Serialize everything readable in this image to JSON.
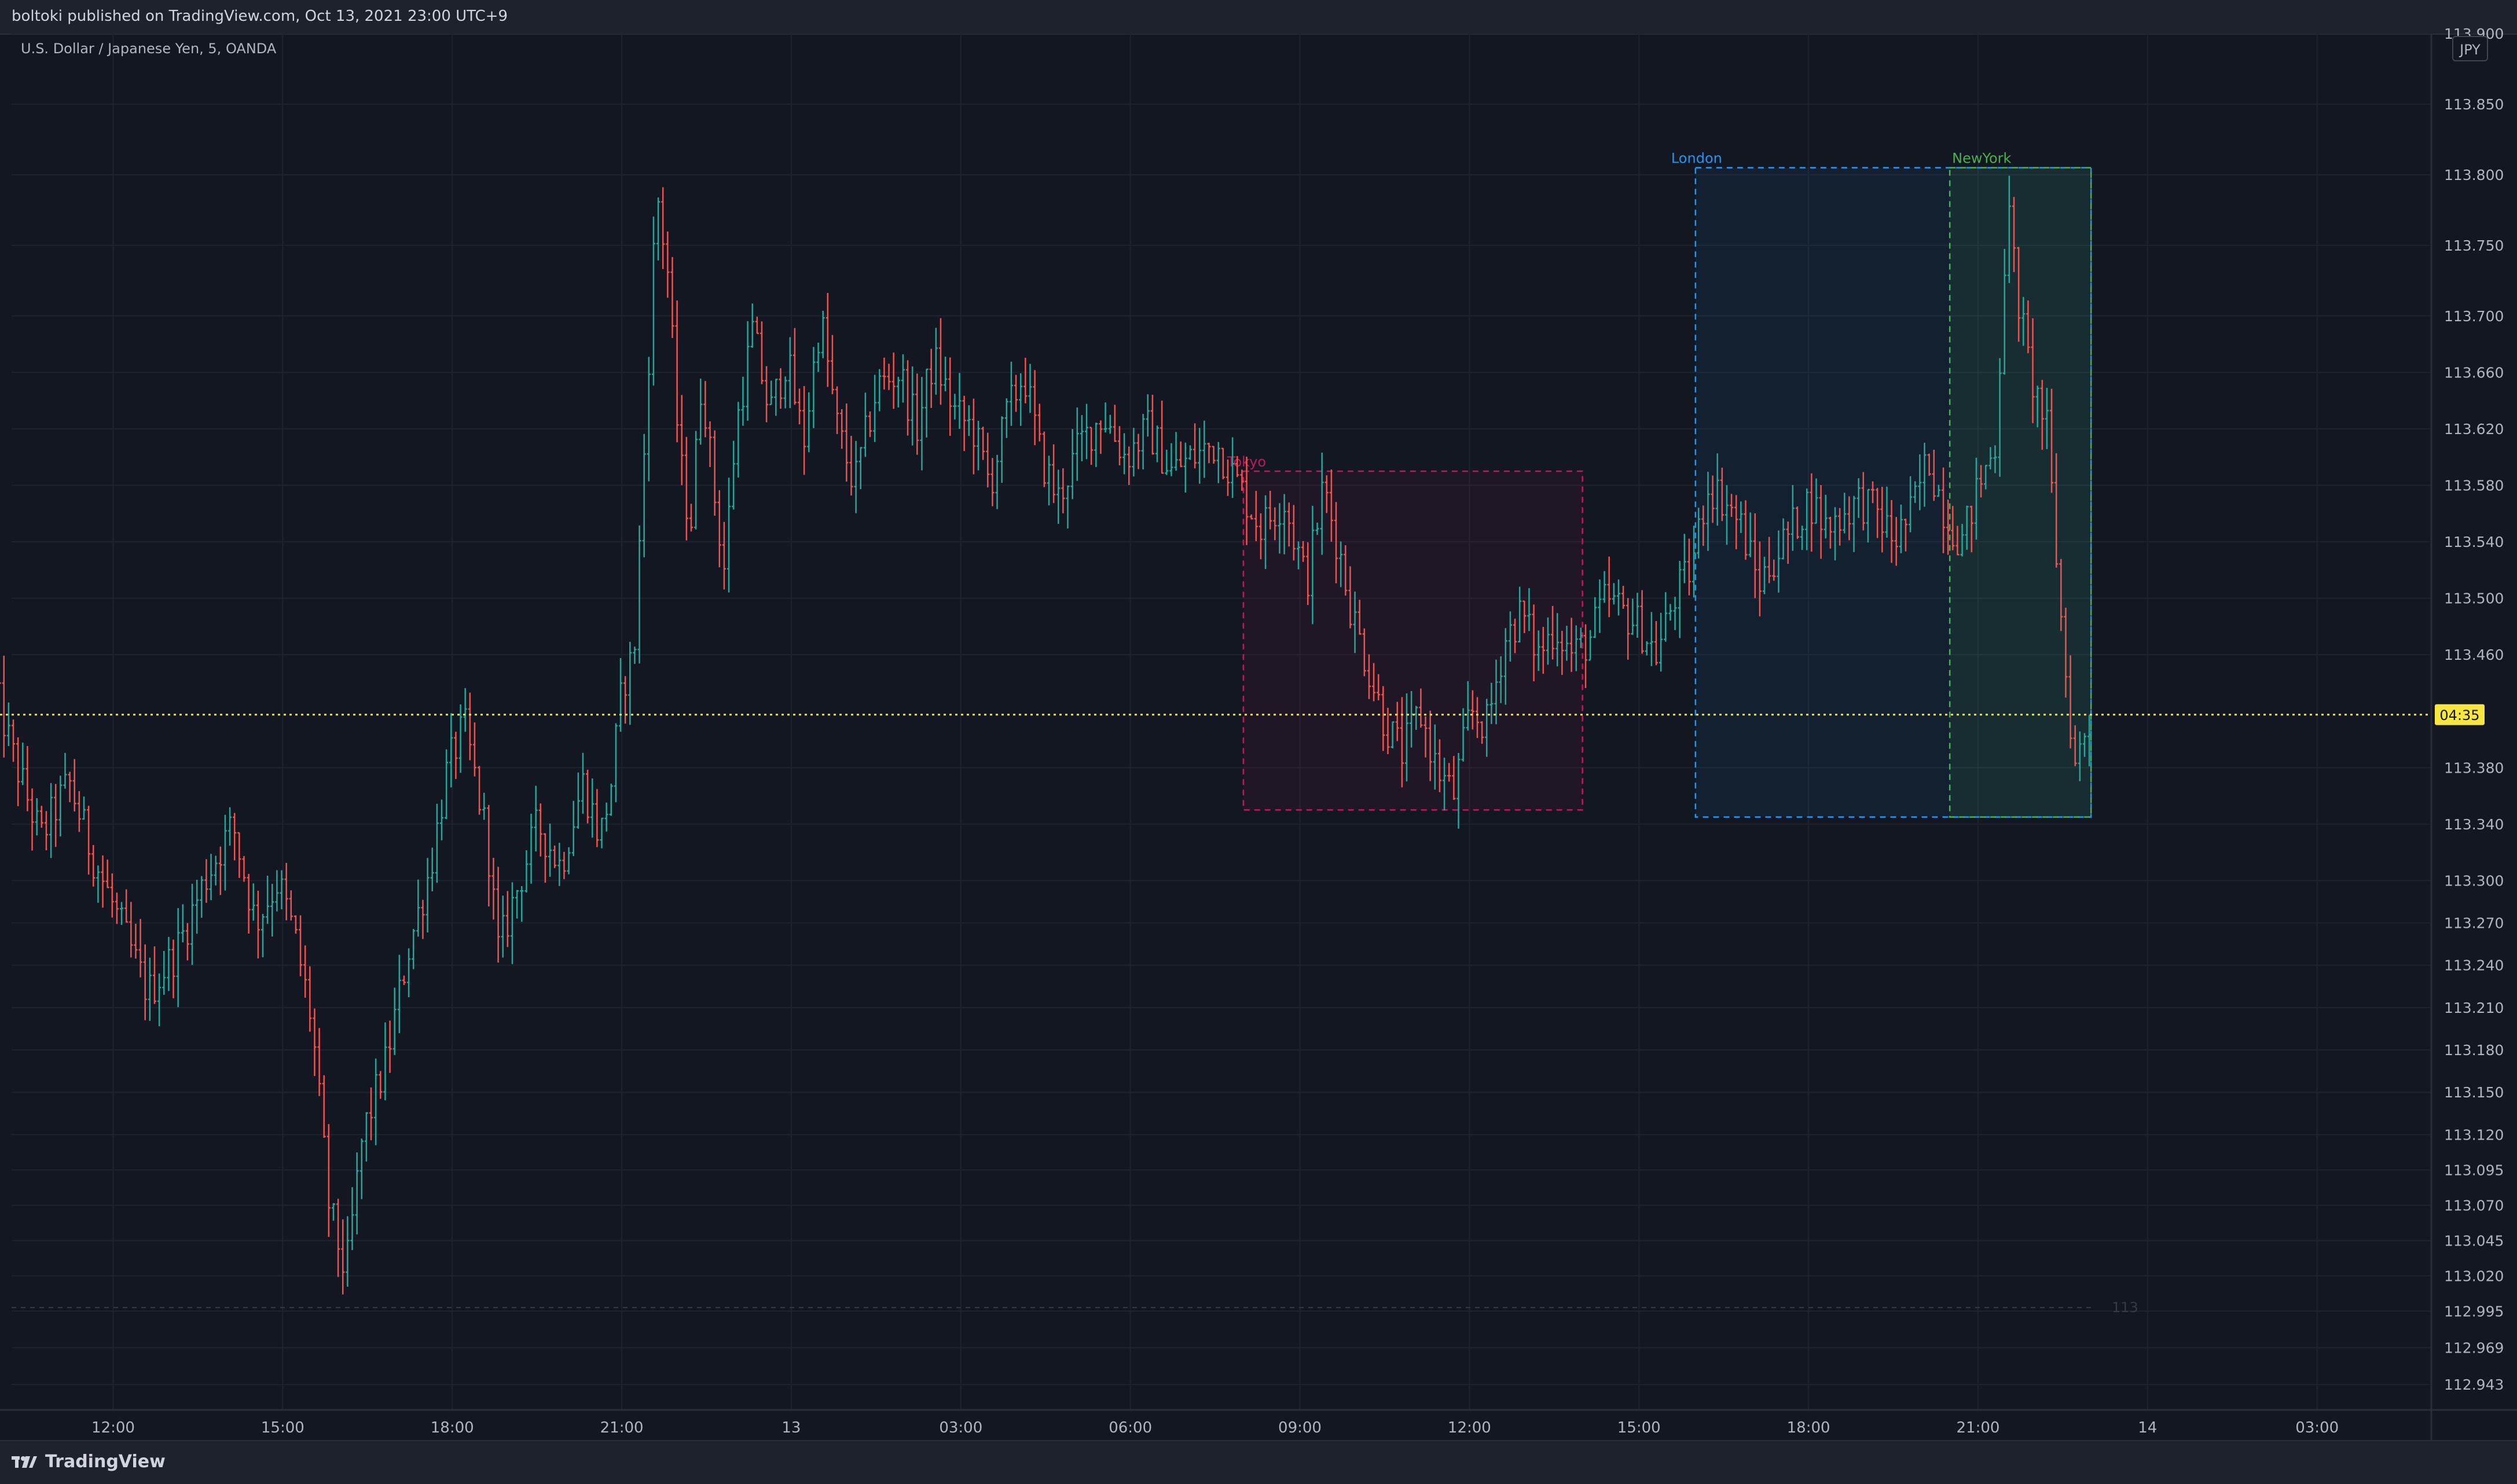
{
  "header": {
    "published": "boltoki published on TradingView.com, Oct 13, 2021 23:00 UTC+9"
  },
  "currency_button": "JPY",
  "footer": {
    "logo_text": "TradingView",
    "logo_icon": "tradingview-logo-icon"
  },
  "colors": {
    "background": "#131722",
    "up": "#26a69a",
    "down": "#ef5350",
    "grid": "#1f2330",
    "price_line": "#f7e640",
    "tokyo": "#c2185b",
    "london": "#2196f3",
    "newyork": "#4caf50"
  },
  "chart_data": {
    "type": "ohlc",
    "symbol": "U.S. Dollar / Japanese Yen, 5, OANDA",
    "y_range": [
      112.925,
      113.9
    ],
    "y_ticks": [
      "113.900",
      "113.850",
      "113.800",
      "113.750",
      "113.700",
      "113.660",
      "113.620",
      "113.580",
      "113.540",
      "113.500",
      "113.460",
      "113.380",
      "113.340",
      "113.300",
      "113.270",
      "113.240",
      "113.210",
      "113.180",
      "113.150",
      "113.120",
      "113.095",
      "113.070",
      "113.045",
      "113.020",
      "112.995",
      "112.969",
      "112.943"
    ],
    "x_ticks": [
      "12:00",
      "15:00",
      "18:00",
      "21:00",
      "13",
      "03:00",
      "06:00",
      "09:00",
      "12:00",
      "15:00",
      "18:00",
      "21:00",
      "14",
      "03:00"
    ],
    "x_range_hours": [
      9.9,
      53.65
    ],
    "last_price": {
      "value": 113.4175,
      "label": "04:35"
    },
    "reference_line": {
      "value": 112.9975,
      "label": "113"
    },
    "sessions": [
      {
        "name": "Tokyo",
        "label": "Tokyo",
        "start_hour": 32.0,
        "end_hour": 38.0,
        "high": 113.59,
        "low": 113.35
      },
      {
        "name": "London",
        "label": "London",
        "start_hour": 40.0,
        "end_hour": 47.0,
        "high": 113.805,
        "low": 113.345
      },
      {
        "name": "NewYork",
        "label": "NewYork",
        "start_hour": 44.5,
        "end_hour": 47.0,
        "high": 113.805,
        "low": 113.345
      }
    ],
    "anchors": [
      [
        9.9,
        113.45
      ],
      [
        10.3,
        113.39
      ],
      [
        10.8,
        113.33
      ],
      [
        11.3,
        113.37
      ],
      [
        11.7,
        113.32
      ],
      [
        12.2,
        113.27
      ],
      [
        12.7,
        113.22
      ],
      [
        13.2,
        113.25
      ],
      [
        13.7,
        113.3
      ],
      [
        14.2,
        113.34
      ],
      [
        14.6,
        113.27
      ],
      [
        15.0,
        113.3
      ],
      [
        15.3,
        113.26
      ],
      [
        15.6,
        113.2
      ],
      [
        15.9,
        113.07
      ],
      [
        16.2,
        113.02
      ],
      [
        16.5,
        113.12
      ],
      [
        16.9,
        113.17
      ],
      [
        17.3,
        113.25
      ],
      [
        17.7,
        113.31
      ],
      [
        18.0,
        113.38
      ],
      [
        18.3,
        113.41
      ],
      [
        18.5,
        113.37
      ],
      [
        18.7,
        113.33
      ],
      [
        18.9,
        113.25
      ],
      [
        19.2,
        113.29
      ],
      [
        19.6,
        113.34
      ],
      [
        20.0,
        113.31
      ],
      [
        20.4,
        113.37
      ],
      [
        20.7,
        113.33
      ],
      [
        20.9,
        113.37
      ],
      [
        21.1,
        113.44
      ],
      [
        21.3,
        113.46
      ],
      [
        21.5,
        113.62
      ],
      [
        21.7,
        113.79
      ],
      [
        21.9,
        113.73
      ],
      [
        22.1,
        113.6
      ],
      [
        22.3,
        113.55
      ],
      [
        22.5,
        113.66
      ],
      [
        22.7,
        113.58
      ],
      [
        22.9,
        113.52
      ],
      [
        23.1,
        113.62
      ],
      [
        23.4,
        113.69
      ],
      [
        23.7,
        113.63
      ],
      [
        24.0,
        113.67
      ],
      [
        24.3,
        113.61
      ],
      [
        24.6,
        113.7
      ],
      [
        24.9,
        113.62
      ],
      [
        25.2,
        113.58
      ],
      [
        25.6,
        113.65
      ],
      [
        26.0,
        113.66
      ],
      [
        26.3,
        113.62
      ],
      [
        26.6,
        113.67
      ],
      [
        27.0,
        113.63
      ],
      [
        27.3,
        113.62
      ],
      [
        27.6,
        113.58
      ],
      [
        27.9,
        113.63
      ],
      [
        28.2,
        113.66
      ],
      [
        28.5,
        113.6
      ],
      [
        28.8,
        113.57
      ],
      [
        29.2,
        113.61
      ],
      [
        29.6,
        113.63
      ],
      [
        30.0,
        113.6
      ],
      [
        30.4,
        113.62
      ],
      [
        30.8,
        113.59
      ],
      [
        31.2,
        113.6
      ],
      [
        31.6,
        113.61
      ],
      [
        32.0,
        113.58
      ],
      [
        32.4,
        113.55
      ],
      [
        32.8,
        113.57
      ],
      [
        33.2,
        113.51
      ],
      [
        33.5,
        113.58
      ],
      [
        33.8,
        113.53
      ],
      [
        34.0,
        113.49
      ],
      [
        34.3,
        113.45
      ],
      [
        34.6,
        113.41
      ],
      [
        34.9,
        113.39
      ],
      [
        35.2,
        113.42
      ],
      [
        35.5,
        113.38
      ],
      [
        35.8,
        113.36
      ],
      [
        36.1,
        113.42
      ],
      [
        36.4,
        113.41
      ],
      [
        36.7,
        113.47
      ],
      [
        37.0,
        113.49
      ],
      [
        37.3,
        113.46
      ],
      [
        37.6,
        113.48
      ],
      [
        37.9,
        113.46
      ],
      [
        38.2,
        113.47
      ],
      [
        38.5,
        113.5
      ],
      [
        38.8,
        113.49
      ],
      [
        39.1,
        113.48
      ],
      [
        39.4,
        113.46
      ],
      [
        39.7,
        113.5
      ],
      [
        40.0,
        113.52
      ],
      [
        40.3,
        113.58
      ],
      [
        40.6,
        113.57
      ],
      [
        40.9,
        113.55
      ],
      [
        41.2,
        113.51
      ],
      [
        41.5,
        113.53
      ],
      [
        41.8,
        113.55
      ],
      [
        42.1,
        113.57
      ],
      [
        42.4,
        113.55
      ],
      [
        42.7,
        113.56
      ],
      [
        43.0,
        113.57
      ],
      [
        43.3,
        113.56
      ],
      [
        43.6,
        113.54
      ],
      [
        43.9,
        113.56
      ],
      [
        44.2,
        113.6
      ],
      [
        44.5,
        113.56
      ],
      [
        44.8,
        113.54
      ],
      [
        45.1,
        113.58
      ],
      [
        45.4,
        113.61
      ],
      [
        45.6,
        113.78
      ],
      [
        45.8,
        113.71
      ],
      [
        46.0,
        113.66
      ],
      [
        46.3,
        113.62
      ],
      [
        46.6,
        113.46
      ],
      [
        46.8,
        113.38
      ],
      [
        47.0,
        113.41
      ]
    ],
    "bar_interval_hours": 0.0833
  }
}
